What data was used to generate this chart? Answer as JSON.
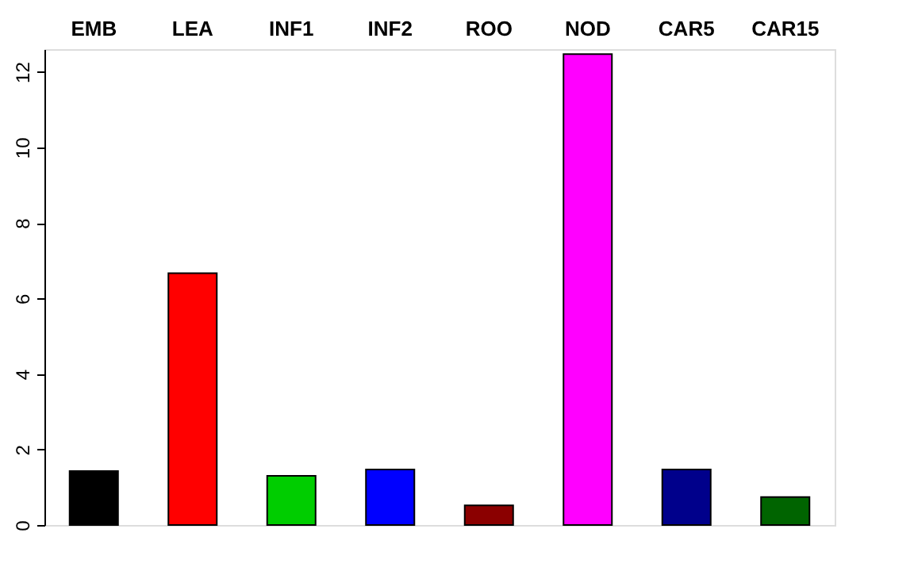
{
  "chart_data": {
    "type": "bar",
    "categories": [
      "EMB",
      "LEA",
      "INF1",
      "INF2",
      "ROO",
      "NOD",
      "CAR5",
      "CAR15"
    ],
    "values": [
      1.43,
      6.67,
      1.3,
      1.47,
      0.52,
      12.47,
      1.47,
      0.74
    ],
    "colors": [
      "#000000",
      "#ff0000",
      "#00cd00",
      "#0000ff",
      "#8b0000",
      "#ff00ff",
      "#00008b",
      "#006400"
    ],
    "ylim": [
      0,
      12.6
    ],
    "yticks": [
      0,
      2,
      4,
      6,
      8,
      10,
      12
    ],
    "grid": false
  }
}
